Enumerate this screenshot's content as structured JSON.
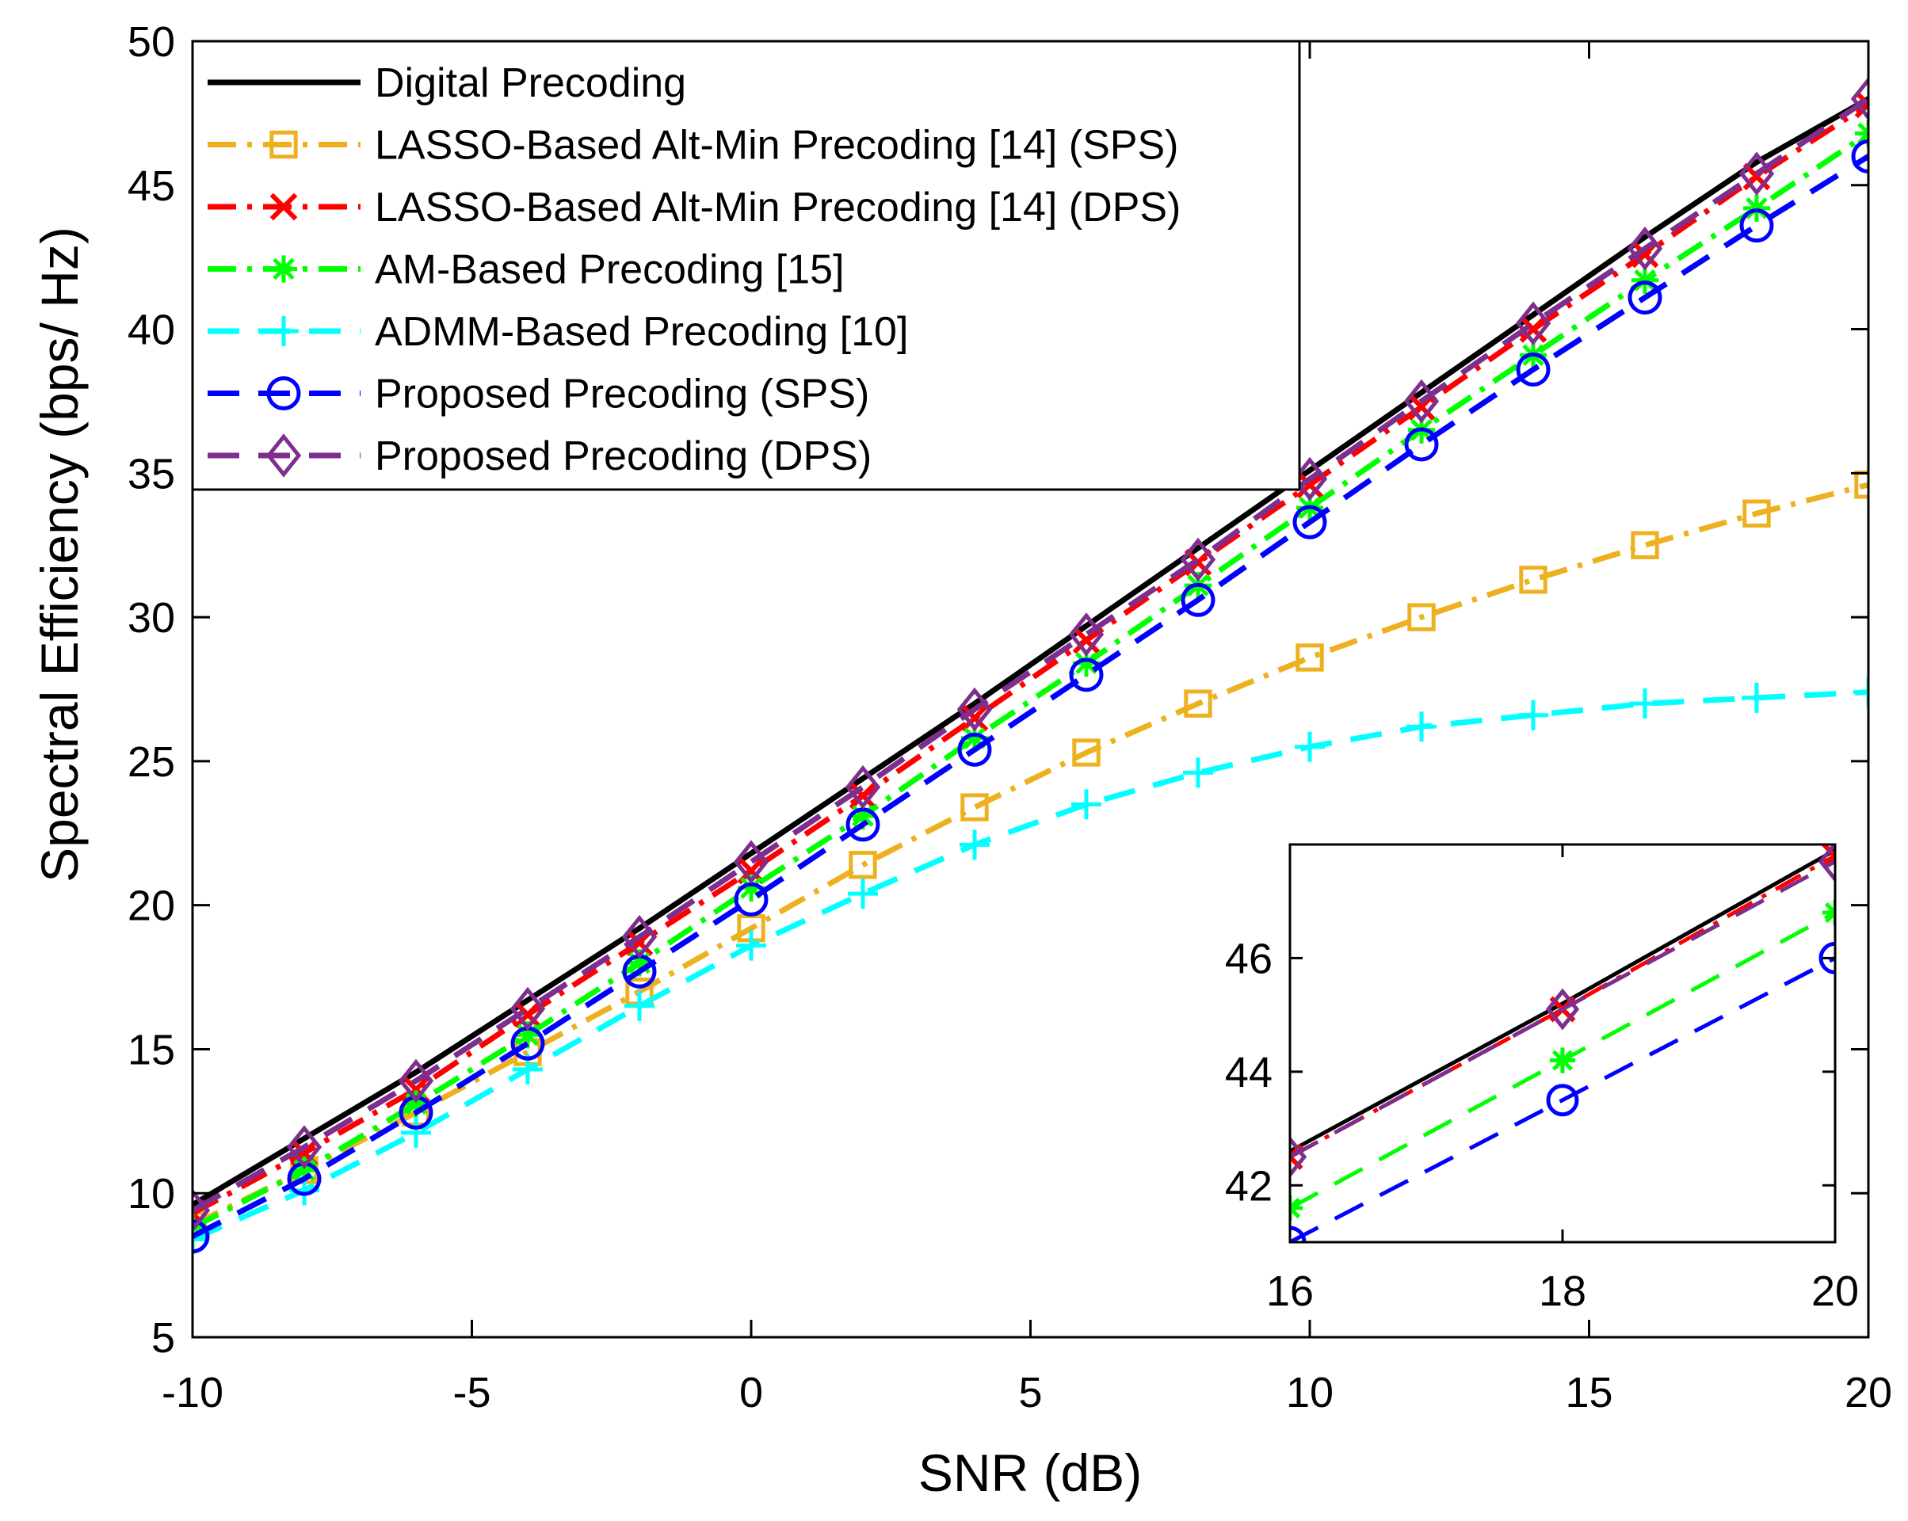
{
  "chart_data": [
    {
      "type": "line",
      "name": "main",
      "title": "",
      "xlabel": "SNR (dB)",
      "ylabel": "Spectral Efficiency (bps/ Hz)",
      "xlim": [
        -10,
        20
      ],
      "ylim": [
        5,
        50
      ],
      "xticks": [
        -10,
        -5,
        0,
        5,
        10,
        15,
        20
      ],
      "yticks": [
        5,
        10,
        15,
        20,
        25,
        30,
        35,
        40,
        45,
        50
      ],
      "xtick_labels": [
        "-10",
        "-5",
        "0",
        "5",
        "10",
        "15",
        "20"
      ],
      "ytick_labels": [
        "5",
        "10",
        "15",
        "20",
        "25",
        "30",
        "35",
        "40",
        "45",
        "50"
      ],
      "grid": false,
      "legend_position": "top-left",
      "x": [
        -10,
        -8,
        -6,
        -4,
        -2,
        0,
        2,
        4,
        6,
        8,
        10,
        12,
        14,
        16,
        18,
        20
      ],
      "series": [
        {
          "name": "Digital Precoding",
          "color": "#000000",
          "dash": "solid",
          "marker": "none",
          "values": [
            9.6,
            11.9,
            14.2,
            16.7,
            19.2,
            21.8,
            24.4,
            27.0,
            29.7,
            32.4,
            35.1,
            37.8,
            40.5,
            43.2,
            45.8,
            48.0
          ]
        },
        {
          "name": "LASSO-Based Alt-Min Precoding [14] (SPS)",
          "color": "#EDB120",
          "dash": "dashdot",
          "marker": "square",
          "values": [
            8.9,
            10.8,
            12.8,
            14.9,
            17.0,
            19.2,
            21.4,
            23.4,
            25.3,
            27.0,
            28.6,
            30.0,
            31.3,
            32.5,
            33.6,
            34.6
          ]
        },
        {
          "name": "LASSO-Based Alt-Min Precoding [14] (DPS)",
          "color": "#FF0000",
          "dash": "dashdot",
          "marker": "x",
          "values": [
            9.3,
            11.4,
            13.6,
            16.2,
            18.7,
            21.2,
            23.8,
            26.5,
            29.2,
            31.9,
            34.6,
            37.3,
            40.0,
            42.6,
            45.3,
            47.8
          ]
        },
        {
          "name": "AM-Based Precoding [15]",
          "color": "#00FF00",
          "dash": "dashdot",
          "marker": "asterisk",
          "values": [
            8.8,
            10.8,
            13.1,
            15.5,
            18.0,
            20.6,
            23.1,
            25.8,
            28.4,
            31.1,
            33.8,
            36.5,
            39.1,
            41.7,
            44.2,
            46.8
          ]
        },
        {
          "name": "ADMM-Based Precoding [10]",
          "color": "#00FFFF",
          "dash": "dashed",
          "marker": "plus",
          "values": [
            8.4,
            10.1,
            12.1,
            14.3,
            16.5,
            18.6,
            20.4,
            22.1,
            23.5,
            24.6,
            25.5,
            26.2,
            26.6,
            27.0,
            27.2,
            27.4
          ]
        },
        {
          "name": "Proposed Precoding (SPS)",
          "color": "#0000FF",
          "dash": "dashed",
          "marker": "circle",
          "values": [
            8.5,
            10.5,
            12.8,
            15.2,
            17.7,
            20.2,
            22.8,
            25.4,
            28.0,
            30.6,
            33.3,
            36.0,
            38.6,
            41.1,
            43.6,
            46.0
          ]
        },
        {
          "name": "Proposed Precoding (DPS)",
          "color": "#7E2F8E",
          "dash": "dashed",
          "marker": "diamond",
          "values": [
            9.4,
            11.6,
            13.9,
            16.4,
            18.9,
            21.5,
            24.1,
            26.8,
            29.4,
            32.0,
            34.8,
            37.5,
            40.2,
            42.8,
            45.4,
            48.0
          ]
        }
      ]
    },
    {
      "type": "line",
      "name": "inset",
      "title": "",
      "xlabel": "",
      "ylabel": "",
      "xlim": [
        16,
        20
      ],
      "ylim": [
        41,
        48
      ],
      "xticks": [
        16,
        18,
        20
      ],
      "yticks": [
        42,
        44,
        46
      ],
      "xtick_labels": [
        "16",
        "18",
        "20"
      ],
      "ytick_labels": [
        "42",
        "44",
        "46"
      ],
      "grid": false,
      "x": [
        16,
        18,
        20
      ],
      "series": [
        {
          "name": "Digital Precoding",
          "color": "#000000",
          "dash": "solid",
          "marker": "none",
          "values": [
            42.6,
            45.2,
            47.9
          ]
        },
        {
          "name": "LASSO-Based Alt-Min Precoding [14] (DPS)",
          "color": "#FF0000",
          "dash": "dashdot",
          "marker": "x",
          "values": [
            42.5,
            45.1,
            47.8
          ]
        },
        {
          "name": "AM-Based Precoding [15]",
          "color": "#00FF00",
          "dash": "dashed",
          "marker": "asterisk",
          "values": [
            41.6,
            44.2,
            46.8
          ]
        },
        {
          "name": "Proposed Precoding (SPS)",
          "color": "#0000FF",
          "dash": "dashed",
          "marker": "circle",
          "values": [
            41.0,
            43.5,
            46.0
          ]
        },
        {
          "name": "Proposed Precoding (DPS)",
          "color": "#7E2F8E",
          "dash": "dashed",
          "marker": "diamond",
          "values": [
            42.5,
            45.1,
            47.7
          ]
        }
      ]
    }
  ]
}
